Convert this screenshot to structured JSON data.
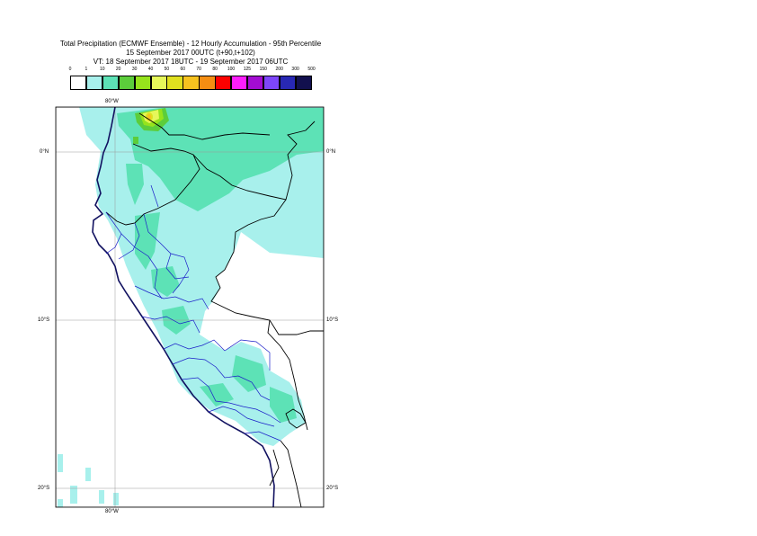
{
  "header": {
    "line1": "Total Precipitation (ECMWF Ensemble) - 12 Hourly Accumulation - 95th Percentile",
    "line2": "15 September 2017 00UTC (t+90,t+102)",
    "line3": "VT: 18 September 2017 18UTC - 19 September 2017 06UTC"
  },
  "legend": {
    "labels": [
      "0",
      "1",
      "10",
      "20",
      "30",
      "40",
      "50",
      "60",
      "70",
      "80",
      "100",
      "125",
      "150",
      "200",
      "300",
      "500"
    ],
    "colors": [
      "#ffffff",
      "#a8f0ec",
      "#5de2b6",
      "#5ccd3b",
      "#96e31c",
      "#e6f75a",
      "#e0e01f",
      "#f6c21f",
      "#f58e12",
      "#fc0100",
      "#fc1efc",
      "#a30cd2",
      "#7e46fa",
      "#2828b4",
      "#12104e"
    ]
  },
  "axis_labels": {
    "top_lon": "80°W",
    "bottom_lon": "80°W",
    "lat_0_left": "0°N",
    "lat_0_right": "0°N",
    "lat_10_left": "10°S",
    "lat_10_right": "10°S",
    "lat_20_left": "20°S",
    "lat_20_right": "20°S"
  }
}
